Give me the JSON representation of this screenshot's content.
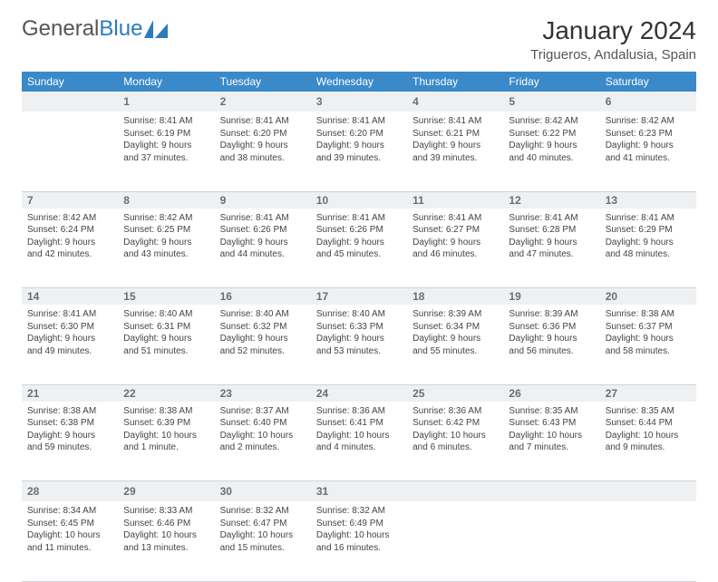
{
  "logo": {
    "text1": "General",
    "text2": "Blue"
  },
  "title": "January 2024",
  "location": "Trigueros, Andalusia, Spain",
  "colors": {
    "header_bg": "#3a89c9",
    "header_text": "#ffffff",
    "daynum_bg": "#eef0f2",
    "border": "#cfd4d8",
    "logo_blue": "#2b7bbd"
  },
  "day_headers": [
    "Sunday",
    "Monday",
    "Tuesday",
    "Wednesday",
    "Thursday",
    "Friday",
    "Saturday"
  ],
  "weeks": [
    [
      {
        "n": "",
        "sunrise": "",
        "sunset": "",
        "daylight": ""
      },
      {
        "n": "1",
        "sunrise": "Sunrise: 8:41 AM",
        "sunset": "Sunset: 6:19 PM",
        "daylight": "Daylight: 9 hours and 37 minutes."
      },
      {
        "n": "2",
        "sunrise": "Sunrise: 8:41 AM",
        "sunset": "Sunset: 6:20 PM",
        "daylight": "Daylight: 9 hours and 38 minutes."
      },
      {
        "n": "3",
        "sunrise": "Sunrise: 8:41 AM",
        "sunset": "Sunset: 6:20 PM",
        "daylight": "Daylight: 9 hours and 39 minutes."
      },
      {
        "n": "4",
        "sunrise": "Sunrise: 8:41 AM",
        "sunset": "Sunset: 6:21 PM",
        "daylight": "Daylight: 9 hours and 39 minutes."
      },
      {
        "n": "5",
        "sunrise": "Sunrise: 8:42 AM",
        "sunset": "Sunset: 6:22 PM",
        "daylight": "Daylight: 9 hours and 40 minutes."
      },
      {
        "n": "6",
        "sunrise": "Sunrise: 8:42 AM",
        "sunset": "Sunset: 6:23 PM",
        "daylight": "Daylight: 9 hours and 41 minutes."
      }
    ],
    [
      {
        "n": "7",
        "sunrise": "Sunrise: 8:42 AM",
        "sunset": "Sunset: 6:24 PM",
        "daylight": "Daylight: 9 hours and 42 minutes."
      },
      {
        "n": "8",
        "sunrise": "Sunrise: 8:42 AM",
        "sunset": "Sunset: 6:25 PM",
        "daylight": "Daylight: 9 hours and 43 minutes."
      },
      {
        "n": "9",
        "sunrise": "Sunrise: 8:41 AM",
        "sunset": "Sunset: 6:26 PM",
        "daylight": "Daylight: 9 hours and 44 minutes."
      },
      {
        "n": "10",
        "sunrise": "Sunrise: 8:41 AM",
        "sunset": "Sunset: 6:26 PM",
        "daylight": "Daylight: 9 hours and 45 minutes."
      },
      {
        "n": "11",
        "sunrise": "Sunrise: 8:41 AM",
        "sunset": "Sunset: 6:27 PM",
        "daylight": "Daylight: 9 hours and 46 minutes."
      },
      {
        "n": "12",
        "sunrise": "Sunrise: 8:41 AM",
        "sunset": "Sunset: 6:28 PM",
        "daylight": "Daylight: 9 hours and 47 minutes."
      },
      {
        "n": "13",
        "sunrise": "Sunrise: 8:41 AM",
        "sunset": "Sunset: 6:29 PM",
        "daylight": "Daylight: 9 hours and 48 minutes."
      }
    ],
    [
      {
        "n": "14",
        "sunrise": "Sunrise: 8:41 AM",
        "sunset": "Sunset: 6:30 PM",
        "daylight": "Daylight: 9 hours and 49 minutes."
      },
      {
        "n": "15",
        "sunrise": "Sunrise: 8:40 AM",
        "sunset": "Sunset: 6:31 PM",
        "daylight": "Daylight: 9 hours and 51 minutes."
      },
      {
        "n": "16",
        "sunrise": "Sunrise: 8:40 AM",
        "sunset": "Sunset: 6:32 PM",
        "daylight": "Daylight: 9 hours and 52 minutes."
      },
      {
        "n": "17",
        "sunrise": "Sunrise: 8:40 AM",
        "sunset": "Sunset: 6:33 PM",
        "daylight": "Daylight: 9 hours and 53 minutes."
      },
      {
        "n": "18",
        "sunrise": "Sunrise: 8:39 AM",
        "sunset": "Sunset: 6:34 PM",
        "daylight": "Daylight: 9 hours and 55 minutes."
      },
      {
        "n": "19",
        "sunrise": "Sunrise: 8:39 AM",
        "sunset": "Sunset: 6:36 PM",
        "daylight": "Daylight: 9 hours and 56 minutes."
      },
      {
        "n": "20",
        "sunrise": "Sunrise: 8:38 AM",
        "sunset": "Sunset: 6:37 PM",
        "daylight": "Daylight: 9 hours and 58 minutes."
      }
    ],
    [
      {
        "n": "21",
        "sunrise": "Sunrise: 8:38 AM",
        "sunset": "Sunset: 6:38 PM",
        "daylight": "Daylight: 9 hours and 59 minutes."
      },
      {
        "n": "22",
        "sunrise": "Sunrise: 8:38 AM",
        "sunset": "Sunset: 6:39 PM",
        "daylight": "Daylight: 10 hours and 1 minute."
      },
      {
        "n": "23",
        "sunrise": "Sunrise: 8:37 AM",
        "sunset": "Sunset: 6:40 PM",
        "daylight": "Daylight: 10 hours and 2 minutes."
      },
      {
        "n": "24",
        "sunrise": "Sunrise: 8:36 AM",
        "sunset": "Sunset: 6:41 PM",
        "daylight": "Daylight: 10 hours and 4 minutes."
      },
      {
        "n": "25",
        "sunrise": "Sunrise: 8:36 AM",
        "sunset": "Sunset: 6:42 PM",
        "daylight": "Daylight: 10 hours and 6 minutes."
      },
      {
        "n": "26",
        "sunrise": "Sunrise: 8:35 AM",
        "sunset": "Sunset: 6:43 PM",
        "daylight": "Daylight: 10 hours and 7 minutes."
      },
      {
        "n": "27",
        "sunrise": "Sunrise: 8:35 AM",
        "sunset": "Sunset: 6:44 PM",
        "daylight": "Daylight: 10 hours and 9 minutes."
      }
    ],
    [
      {
        "n": "28",
        "sunrise": "Sunrise: 8:34 AM",
        "sunset": "Sunset: 6:45 PM",
        "daylight": "Daylight: 10 hours and 11 minutes."
      },
      {
        "n": "29",
        "sunrise": "Sunrise: 8:33 AM",
        "sunset": "Sunset: 6:46 PM",
        "daylight": "Daylight: 10 hours and 13 minutes."
      },
      {
        "n": "30",
        "sunrise": "Sunrise: 8:32 AM",
        "sunset": "Sunset: 6:47 PM",
        "daylight": "Daylight: 10 hours and 15 minutes."
      },
      {
        "n": "31",
        "sunrise": "Sunrise: 8:32 AM",
        "sunset": "Sunset: 6:49 PM",
        "daylight": "Daylight: 10 hours and 16 minutes."
      },
      {
        "n": "",
        "sunrise": "",
        "sunset": "",
        "daylight": ""
      },
      {
        "n": "",
        "sunrise": "",
        "sunset": "",
        "daylight": ""
      },
      {
        "n": "",
        "sunrise": "",
        "sunset": "",
        "daylight": ""
      }
    ]
  ]
}
